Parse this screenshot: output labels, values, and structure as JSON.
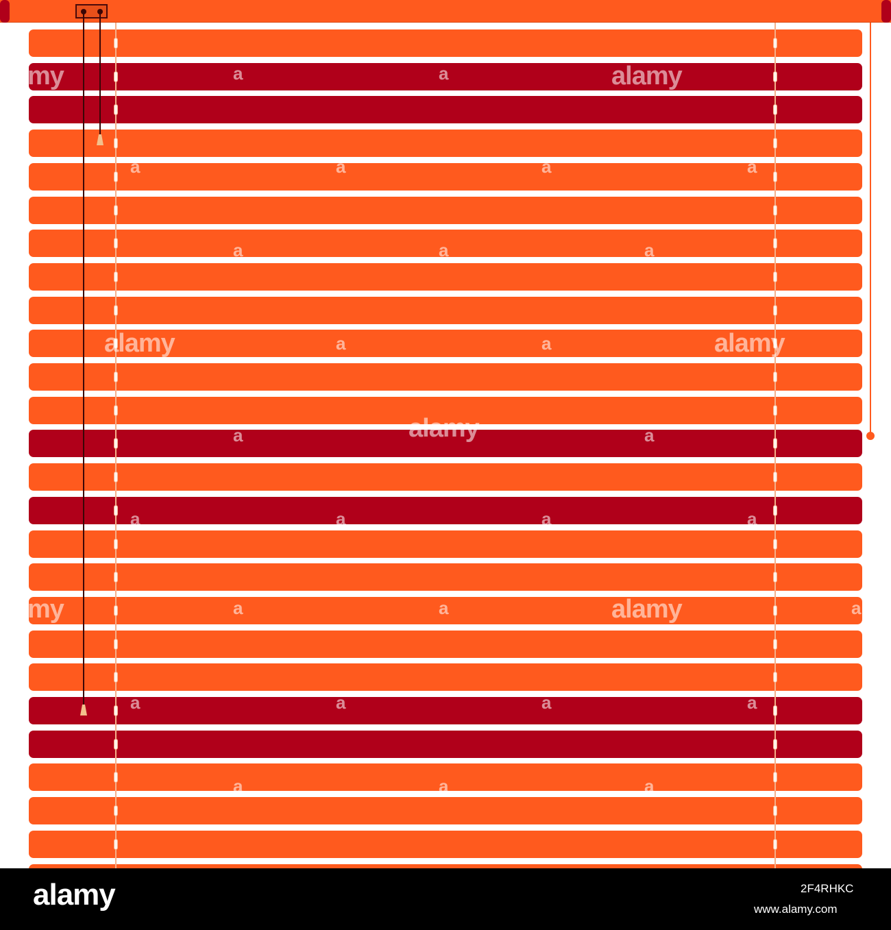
{
  "scene": {
    "subject": "horizontal venetian blind",
    "colors": {
      "slat_primary": "#ff5a1e",
      "slat_accent": "#b0001a",
      "ladder_string": "#f5b08a",
      "tilt_cord": "#3a0606",
      "tassel": "#f3c08c",
      "background": "#ffffff"
    },
    "slat_colors": [
      "orange",
      "red",
      "red",
      "orange",
      "orange",
      "orange",
      "orange",
      "orange",
      "orange",
      "orange",
      "orange",
      "orange",
      "red",
      "orange",
      "red",
      "orange",
      "orange",
      "orange",
      "orange",
      "orange",
      "red",
      "red",
      "orange",
      "orange",
      "orange",
      "orange"
    ]
  },
  "watermark": {
    "text": "alamy",
    "fragment": "a",
    "partial": "my"
  },
  "footer": {
    "brand": "alamy",
    "image_id": "2F4RHKC",
    "site": "www.alamy.com"
  }
}
